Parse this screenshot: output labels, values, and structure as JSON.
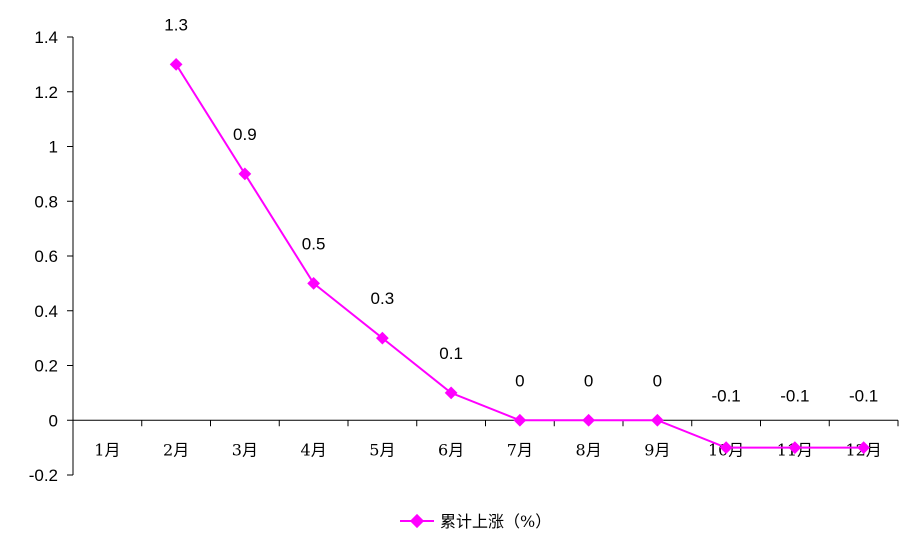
{
  "chart_data": {
    "type": "line",
    "categories": [
      "1月",
      "2月",
      "3月",
      "4月",
      "5月",
      "6月",
      "7月",
      "8月",
      "9月",
      "10月",
      "11月",
      "12月"
    ],
    "series": [
      {
        "name": "累计上涨（%）",
        "values": [
          null,
          1.3,
          0.9,
          0.5,
          0.3,
          0.1,
          0,
          0,
          0,
          -0.1,
          -0.1,
          -0.1
        ],
        "data_labels": [
          "",
          "1.3",
          "0.9",
          "0.5",
          "0.3",
          "0.1",
          "0",
          "0",
          "0",
          "-0.1",
          "-0.1",
          "-0.1"
        ]
      }
    ],
    "y_ticks": [
      "-0.2",
      "0",
      "0.2",
      "0.4",
      "0.6",
      "0.8",
      "1",
      "1.2",
      "1.4"
    ],
    "ylim": [
      -0.2,
      1.4
    ],
    "grid": false,
    "legend": "bottom",
    "colors": {
      "series": "#ff00ff",
      "axis": "#000000"
    }
  }
}
